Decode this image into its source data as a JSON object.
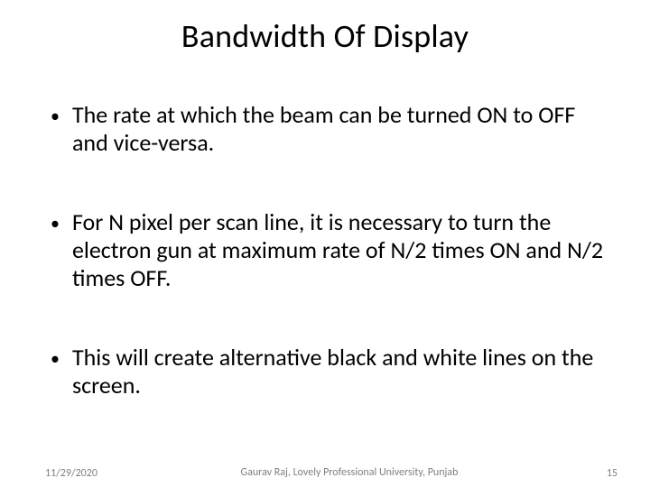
{
  "title": "Bandwidth Of Display",
  "bullets": [
    "The rate at which the beam  can be turned ON to OFF and vice-versa.",
    "For N pixel per scan line, it is necessary to turn the electron gun at maximum rate of N/2 times ON and N/2 times OFF.",
    "This will create alternative black and white lines on the screen."
  ],
  "footer": {
    "date": "11/29/2020",
    "author": "Gaurav Raj, Lovely Professional University, Punjab",
    "page": "15"
  },
  "style": {
    "background_color": "#ffffff",
    "text_color": "#000000",
    "footer_color": "#7f7f7f",
    "title_fontsize": 36,
    "body_fontsize": 26,
    "footer_fontsize": 12,
    "font_family": "Calibri, Arial, sans-serif"
  }
}
